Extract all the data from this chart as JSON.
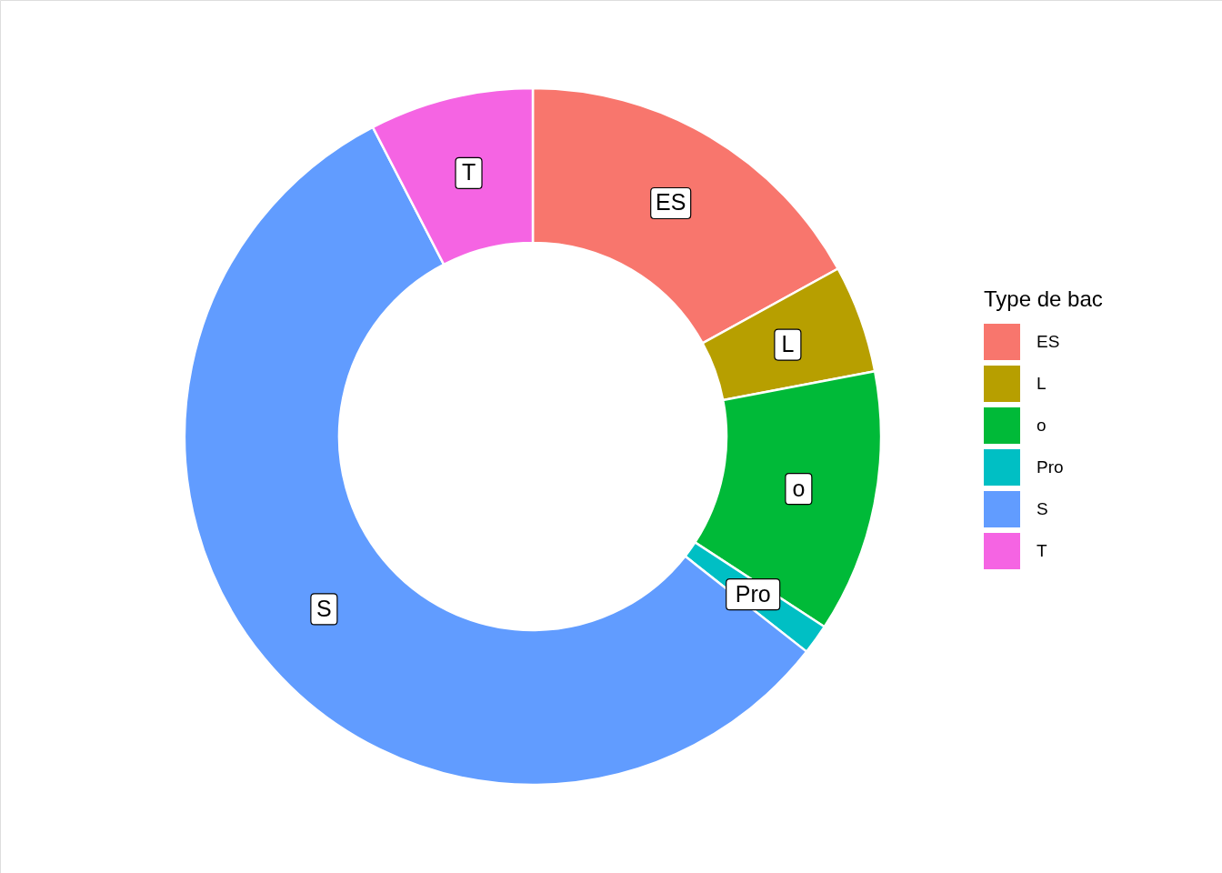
{
  "chart_data": {
    "type": "donut",
    "legend_title": "Type de bac",
    "legend": "right",
    "categories": [
      "ES",
      "L",
      "o",
      "Pro",
      "S",
      "T"
    ],
    "values": [
      17.0,
      5.0,
      12.2,
      1.4,
      56.8,
      7.6
    ],
    "colors": [
      "#f8766d",
      "#b79f00",
      "#00ba38",
      "#00bfc4",
      "#619cff",
      "#f564e3"
    ]
  }
}
